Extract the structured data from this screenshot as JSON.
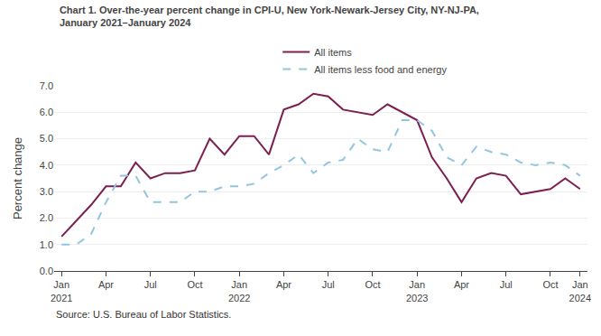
{
  "chart_data": {
    "type": "line",
    "title": "Chart 1. Over-the-year percent change in CPI-U, New York-Newark-Jersey City, NY-NJ-PA,\nJanuary 2021–January 2024",
    "ylabel": "Percent change",
    "annotations": [
      "Source: U.S. Bureau of Labor Statistics."
    ],
    "categories": [
      "Jan\n2021",
      null,
      null,
      "Apr",
      null,
      null,
      "Jul",
      null,
      null,
      "Oct",
      null,
      null,
      "Jan\n2022",
      null,
      null,
      "Apr",
      null,
      null,
      "Jul",
      null,
      null,
      "Oct",
      null,
      null,
      "Jan\n2023",
      null,
      null,
      "Apr",
      null,
      null,
      "Jul",
      null,
      null,
      "Oct",
      null,
      "Jan\n2024"
    ],
    "series": [
      {
        "name": "All items",
        "color": "#7B2050",
        "line_style": "solid",
        "values": [
          1.3,
          1.9,
          2.5,
          3.2,
          3.2,
          4.1,
          3.5,
          3.7,
          3.7,
          3.8,
          5.0,
          4.4,
          5.1,
          5.1,
          4.4,
          6.1,
          6.3,
          6.7,
          6.6,
          6.1,
          6.0,
          5.9,
          6.3,
          6.0,
          5.7,
          4.3,
          3.5,
          2.6,
          3.5,
          3.7,
          3.6,
          2.9,
          3.0,
          3.1,
          3.5,
          3.1
        ]
      },
      {
        "name": "All items less food and energy",
        "color": "#92C5DE",
        "line_style": "dashed",
        "values": [
          1.0,
          1.0,
          1.4,
          2.6,
          3.6,
          3.6,
          2.6,
          2.6,
          2.6,
          3.0,
          3.0,
          3.2,
          3.2,
          3.3,
          3.7,
          4.0,
          4.4,
          3.7,
          4.1,
          4.2,
          5.0,
          4.6,
          4.5,
          5.7,
          5.7,
          5.3,
          4.3,
          4.0,
          4.7,
          4.5,
          4.4,
          4.1,
          4.0,
          4.1,
          4.0,
          3.6
        ]
      }
    ],
    "ylim": [
      0.0,
      7.0
    ],
    "yticks": [
      {
        "value": 0,
        "label": "0.0"
      },
      {
        "value": 1,
        "label": "1.0"
      },
      {
        "value": 2,
        "label": "2.0"
      },
      {
        "value": 3,
        "label": "3.0"
      },
      {
        "value": 4,
        "label": "4.0"
      },
      {
        "value": 5,
        "label": "5.0"
      },
      {
        "value": 6,
        "label": "6.0"
      },
      {
        "value": 7,
        "label": "7.0"
      }
    ],
    "grid": true
  }
}
